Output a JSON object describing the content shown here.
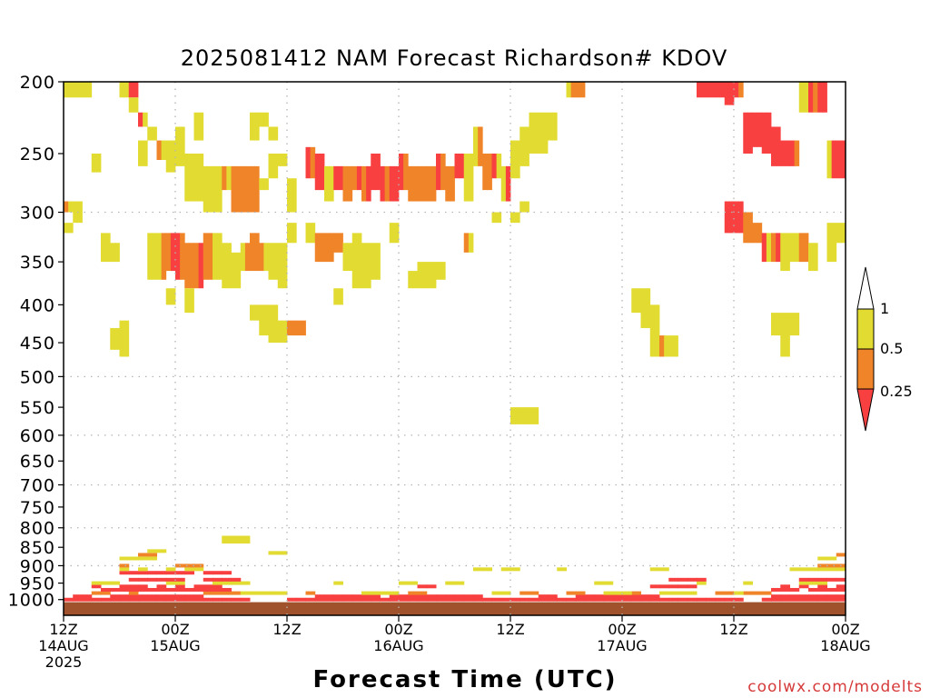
{
  "page": {
    "title": "2025081412 NAM Forecast Richardson# KDOV",
    "watermark": "coolwx.com/modelts"
  },
  "colors": {
    "lt025": "#f84040",
    "r025_05": "#f08428",
    "r05_1": "#e2dc32",
    "ground": "#a0522d",
    "grid": "#b4b4b4"
  },
  "chart_data": {
    "type": "heatmap",
    "title": "2025081412 NAM Forecast Richardson# KDOV",
    "xlabel": "Forecast Time (UTC)",
    "ylabel": "",
    "x_unit": "forecast hour from 2025-08-14 12Z",
    "xlim": [
      0,
      84
    ],
    "y_axis": "pressure (hPa), log scale, inverted",
    "ylim": [
      1050,
      200
    ],
    "y_ticks": [
      "200",
      "250",
      "300",
      "350",
      "400",
      "450",
      "500",
      "550",
      "600",
      "650",
      "700",
      "750",
      "800",
      "850",
      "900",
      "950",
      "1000"
    ],
    "x_ticks": [
      {
        "hour": 0,
        "line1": "12Z",
        "line2": "14AUG",
        "line3": "2025"
      },
      {
        "hour": 12,
        "line1": "00Z",
        "line2": "15AUG",
        "line3": ""
      },
      {
        "hour": 24,
        "line1": "12Z",
        "line2": "",
        "line3": ""
      },
      {
        "hour": 36,
        "line1": "00Z",
        "line2": "16AUG",
        "line3": ""
      },
      {
        "hour": 48,
        "line1": "12Z",
        "line2": "",
        "line3": ""
      },
      {
        "hour": 60,
        "line1": "00Z",
        "line2": "17AUG",
        "line3": ""
      },
      {
        "hour": 72,
        "line1": "12Z",
        "line2": "",
        "line3": ""
      },
      {
        "hour": 84,
        "line1": "00Z",
        "line2": "18AUG",
        "line3": ""
      }
    ],
    "dotted_grid_levels": [
      300,
      500,
      600,
      700,
      800,
      900
    ],
    "legend": {
      "placement": "right",
      "bins": [
        {
          "label": "0.25",
          "range": "<0.25",
          "color_key": "lt025"
        },
        {
          "label": "0.5",
          "range": "0.25-0.5",
          "color_key": "r025_05"
        },
        {
          "label": "1",
          "range": "0.5-1",
          "color_key": "r05_1"
        }
      ]
    },
    "cells": [
      [
        0,
        200,
        210,
        3,
        3
      ],
      [
        1,
        200,
        210,
        3,
        3
      ],
      [
        2,
        200,
        210,
        3,
        3
      ],
      [
        6,
        200,
        210,
        3,
        3
      ],
      [
        7,
        200,
        210,
        1,
        1
      ],
      [
        7,
        210,
        220,
        3,
        3
      ],
      [
        8,
        220,
        230,
        1,
        3
      ],
      [
        9,
        230,
        240,
        3,
        3
      ],
      [
        14,
        220,
        240,
        3,
        3
      ],
      [
        20,
        220,
        240,
        3,
        3
      ],
      [
        21,
        220,
        230,
        3,
        3
      ],
      [
        22,
        230,
        240,
        3,
        3
      ],
      [
        0,
        290,
        300,
        2,
        3
      ],
      [
        1,
        290,
        310,
        3,
        3
      ],
      [
        3,
        250,
        265,
        3,
        3
      ],
      [
        8,
        240,
        260,
        3,
        3
      ],
      [
        10,
        240,
        255,
        2,
        3
      ],
      [
        11,
        240,
        265,
        3,
        3
      ],
      [
        12,
        230,
        260,
        3,
        3
      ],
      [
        13,
        250,
        290,
        3,
        3
      ],
      [
        14,
        250,
        290,
        3,
        3
      ],
      [
        15,
        260,
        300,
        3,
        3
      ],
      [
        16,
        260,
        300,
        3,
        3
      ],
      [
        17,
        260,
        280,
        2,
        3
      ],
      [
        18,
        260,
        300,
        2,
        2
      ],
      [
        19,
        260,
        300,
        2,
        2
      ],
      [
        20,
        260,
        300,
        2,
        2
      ],
      [
        21,
        270,
        280,
        3,
        3
      ],
      [
        22,
        250,
        270,
        3,
        3
      ],
      [
        23,
        250,
        260,
        3,
        3
      ],
      [
        24,
        270,
        300,
        3,
        3
      ],
      [
        26,
        245,
        270,
        1,
        2
      ],
      [
        27,
        250,
        280,
        1,
        1
      ],
      [
        28,
        260,
        290,
        3,
        3
      ],
      [
        29,
        260,
        280,
        1,
        1
      ],
      [
        30,
        260,
        290,
        2,
        2
      ],
      [
        31,
        260,
        280,
        2,
        1
      ],
      [
        32,
        260,
        290,
        2,
        1
      ],
      [
        33,
        250,
        280,
        1,
        1
      ],
      [
        34,
        260,
        290,
        1,
        2
      ],
      [
        35,
        260,
        290,
        1,
        1
      ],
      [
        36,
        250,
        280,
        1,
        2
      ],
      [
        37,
        260,
        290,
        2,
        2
      ],
      [
        38,
        260,
        290,
        2,
        2
      ],
      [
        39,
        260,
        290,
        2,
        2
      ],
      [
        40,
        250,
        280,
        1,
        2
      ],
      [
        41,
        260,
        290,
        2,
        2
      ],
      [
        42,
        250,
        270,
        1,
        1
      ],
      [
        43,
        250,
        290,
        3,
        3
      ],
      [
        44,
        230,
        260,
        3,
        2
      ],
      [
        45,
        250,
        280,
        2,
        2
      ],
      [
        46,
        250,
        270,
        1,
        3
      ],
      [
        47,
        260,
        290,
        3,
        1
      ],
      [
        48,
        240,
        270,
        3,
        3
      ],
      [
        49,
        230,
        260,
        3,
        3
      ],
      [
        50,
        220,
        250,
        3,
        3
      ],
      [
        51,
        220,
        250,
        3,
        3
      ],
      [
        52,
        220,
        240,
        3,
        3
      ],
      [
        54,
        200,
        210,
        3,
        2
      ],
      [
        55,
        200,
        210,
        2,
        2
      ],
      [
        68,
        200,
        210,
        1,
        1
      ],
      [
        69,
        200,
        210,
        1,
        1
      ],
      [
        70,
        200,
        210,
        1,
        1
      ],
      [
        71,
        200,
        215,
        1,
        1
      ],
      [
        72,
        200,
        210,
        1,
        2
      ],
      [
        73,
        220,
        250,
        1,
        1
      ],
      [
        74,
        220,
        245,
        1,
        1
      ],
      [
        75,
        220,
        250,
        1,
        1
      ],
      [
        76,
        230,
        260,
        1,
        1
      ],
      [
        77,
        240,
        260,
        1,
        1
      ],
      [
        78,
        240,
        260,
        1,
        2
      ],
      [
        79,
        200,
        220,
        3,
        3
      ],
      [
        80,
        200,
        220,
        1,
        2
      ],
      [
        81,
        200,
        220,
        1,
        1
      ],
      [
        82,
        240,
        270,
        3,
        1
      ],
      [
        83,
        240,
        270,
        1,
        1
      ],
      [
        0,
        310,
        320,
        3,
        3
      ],
      [
        4,
        320,
        350,
        3,
        3
      ],
      [
        5,
        330,
        350,
        3,
        3
      ],
      [
        9,
        320,
        370,
        3,
        3
      ],
      [
        10,
        320,
        370,
        3,
        2
      ],
      [
        11,
        320,
        360,
        2,
        1
      ],
      [
        12,
        320,
        370,
        1,
        2
      ],
      [
        13,
        330,
        380,
        2,
        2
      ],
      [
        14,
        330,
        380,
        2,
        1
      ],
      [
        15,
        320,
        370,
        2,
        2
      ],
      [
        16,
        320,
        370,
        3,
        3
      ],
      [
        17,
        330,
        380,
        3,
        3
      ],
      [
        18,
        340,
        380,
        3,
        3
      ],
      [
        19,
        330,
        360,
        3,
        2
      ],
      [
        20,
        320,
        360,
        2,
        2
      ],
      [
        21,
        330,
        360,
        2,
        3
      ],
      [
        22,
        330,
        370,
        3,
        3
      ],
      [
        23,
        330,
        380,
        3,
        3
      ],
      [
        24,
        310,
        330,
        3,
        3
      ],
      [
        26,
        310,
        330,
        3,
        3
      ],
      [
        27,
        320,
        350,
        2,
        2
      ],
      [
        28,
        320,
        350,
        2,
        2
      ],
      [
        29,
        320,
        340,
        2,
        2
      ],
      [
        30,
        330,
        360,
        3,
        3
      ],
      [
        31,
        320,
        380,
        3,
        3
      ],
      [
        32,
        330,
        380,
        3,
        3
      ],
      [
        33,
        330,
        370,
        3,
        3
      ],
      [
        35,
        310,
        330,
        3,
        3
      ],
      [
        37,
        360,
        380,
        3,
        3
      ],
      [
        38,
        360,
        380,
        3,
        3
      ],
      [
        39,
        360,
        380,
        3,
        3
      ],
      [
        43,
        320,
        340,
        2,
        3
      ],
      [
        46,
        300,
        310,
        3,
        3
      ],
      [
        48,
        300,
        310,
        3,
        3
      ],
      [
        49,
        290,
        300,
        3,
        3
      ],
      [
        71,
        290,
        320,
        1,
        1
      ],
      [
        72,
        290,
        320,
        1,
        1
      ],
      [
        73,
        300,
        330,
        2,
        2
      ],
      [
        74,
        310,
        330,
        2,
        2
      ],
      [
        75,
        320,
        350,
        1,
        3
      ],
      [
        76,
        320,
        350,
        2,
        1
      ],
      [
        77,
        320,
        360,
        3,
        3
      ],
      [
        78,
        320,
        350,
        3,
        3
      ],
      [
        79,
        320,
        350,
        2,
        2
      ],
      [
        80,
        330,
        360,
        3,
        3
      ],
      [
        82,
        310,
        350,
        3,
        3
      ],
      [
        83,
        310,
        330,
        3,
        3
      ],
      [
        5,
        430,
        460,
        3,
        3
      ],
      [
        6,
        420,
        470,
        3,
        3
      ],
      [
        11,
        380,
        400,
        3,
        3
      ],
      [
        13,
        380,
        410,
        3,
        3
      ],
      [
        20,
        400,
        420,
        3,
        3
      ],
      [
        21,
        400,
        440,
        3,
        3
      ],
      [
        22,
        400,
        450,
        3,
        3
      ],
      [
        23,
        420,
        450,
        3,
        3
      ],
      [
        24,
        420,
        440,
        2,
        2
      ],
      [
        25,
        420,
        440,
        2,
        2
      ],
      [
        29,
        380,
        400,
        3,
        3
      ],
      [
        38,
        350,
        370,
        3,
        3
      ],
      [
        39,
        350,
        370,
        3,
        3
      ],
      [
        40,
        350,
        370,
        3,
        3
      ],
      [
        61,
        380,
        410,
        3,
        3
      ],
      [
        62,
        380,
        430,
        3,
        3
      ],
      [
        63,
        400,
        470,
        3,
        3
      ],
      [
        64,
        440,
        470,
        2,
        3
      ],
      [
        65,
        440,
        470,
        3,
        3
      ],
      [
        76,
        410,
        440,
        3,
        3
      ],
      [
        77,
        410,
        470,
        3,
        3
      ],
      [
        78,
        410,
        440,
        3,
        3
      ],
      [
        48,
        550,
        580,
        3,
        3
      ],
      [
        49,
        550,
        580,
        3,
        3
      ],
      [
        50,
        550,
        580,
        3,
        3
      ],
      [
        17,
        820,
        840,
        3,
        3
      ],
      [
        18,
        820,
        840,
        3,
        3
      ],
      [
        19,
        820,
        840,
        3,
        3
      ],
      [
        22,
        860,
        870,
        3,
        3
      ],
      [
        23,
        860,
        870,
        3,
        3
      ]
    ],
    "boundary_layer_rows": [
      {
        "p": 1000,
        "color_key": "lt025",
        "hours": [
          0,
          1,
          2,
          3,
          4,
          5,
          6,
          7,
          8,
          9,
          10,
          11,
          12,
          13,
          14,
          15,
          16,
          17,
          18,
          19,
          24,
          25,
          26,
          27,
          28,
          29,
          30,
          31,
          32,
          33,
          34,
          35,
          36,
          37,
          38,
          39,
          40,
          41,
          42,
          43,
          44,
          45,
          46,
          47,
          48,
          49,
          50,
          51,
          52,
          53,
          54,
          55,
          56,
          57,
          58,
          59,
          60,
          61,
          62,
          63,
          64,
          65,
          66,
          67,
          68,
          69,
          70,
          71,
          72,
          75,
          76,
          77,
          78,
          79,
          80,
          81,
          82,
          83
        ]
      },
      {
        "p": 990,
        "color_key": "lt025",
        "hours": [
          1,
          2,
          5,
          6,
          7,
          8,
          9,
          10,
          11,
          12,
          13,
          14,
          27,
          28,
          29,
          30,
          31,
          32,
          33,
          35,
          36,
          37,
          38,
          39,
          40,
          41,
          42,
          43,
          44,
          51,
          52,
          55,
          56,
          57,
          58,
          59,
          60,
          61,
          62,
          63,
          76,
          77,
          78,
          79,
          80,
          81,
          82,
          83
        ]
      },
      {
        "p": 980,
        "color_key": "r025_05",
        "hours": [
          3,
          4,
          7,
          15,
          16,
          17,
          18,
          26,
          37,
          38,
          49,
          50,
          54,
          55,
          61,
          70,
          71,
          73,
          74,
          75
        ]
      },
      {
        "p": 980,
        "color_key": "r05_1",
        "hours": [
          19,
          20,
          21,
          22,
          23,
          32,
          33,
          34,
          35,
          46,
          47,
          58,
          59,
          60,
          64,
          65,
          66,
          67,
          72
        ]
      },
      {
        "p": 970,
        "color_key": "lt025",
        "hours": [
          4,
          5,
          6,
          7,
          8,
          9,
          10,
          11,
          12,
          13,
          14,
          15,
          16,
          17,
          76,
          77,
          78,
          80,
          81,
          82,
          83
        ]
      },
      {
        "p": 960,
        "color_key": "lt025",
        "hours": [
          3,
          6,
          7,
          8,
          10,
          12,
          14,
          15,
          16,
          38,
          39,
          63,
          64,
          65,
          66,
          67,
          77,
          79,
          81,
          83
        ]
      },
      {
        "p": 950,
        "color_key": "r05_1",
        "hours": [
          3,
          4,
          5,
          11,
          12,
          16,
          17,
          18,
          19,
          29,
          36,
          37,
          41,
          42,
          57,
          58,
          68,
          73,
          79,
          80,
          81
        ]
      },
      {
        "p": 940,
        "color_key": "lt025",
        "hours": [
          7,
          8,
          9,
          10,
          11,
          12,
          15,
          16,
          17,
          18,
          65,
          66,
          67,
          68,
          79,
          80,
          81,
          82,
          83
        ]
      },
      {
        "p": 920,
        "color_key": "lt025",
        "hours": [
          6,
          7,
          8,
          9,
          10,
          11,
          12,
          13,
          15,
          16,
          17
        ]
      },
      {
        "p": 910,
        "color_key": "r05_1",
        "hours": [
          6,
          8,
          11,
          13,
          14,
          44,
          45,
          47,
          48,
          53,
          63,
          64,
          78,
          79,
          80,
          81,
          82,
          83
        ]
      },
      {
        "p": 900,
        "color_key": "r025_05",
        "hours": [
          6,
          12,
          13,
          14,
          81,
          82,
          83
        ]
      },
      {
        "p": 880,
        "color_key": "r05_1",
        "hours": [
          6,
          7,
          8,
          9,
          81,
          82
        ]
      },
      {
        "p": 870,
        "color_key": "r025_05",
        "hours": [
          8,
          9,
          83
        ]
      },
      {
        "p": 860,
        "color_key": "r05_1",
        "hours": [
          9,
          10
        ]
      }
    ],
    "ground_band": {
      "from_hpa": 1000,
      "to_hpa": 1050,
      "color_key": "ground"
    }
  }
}
